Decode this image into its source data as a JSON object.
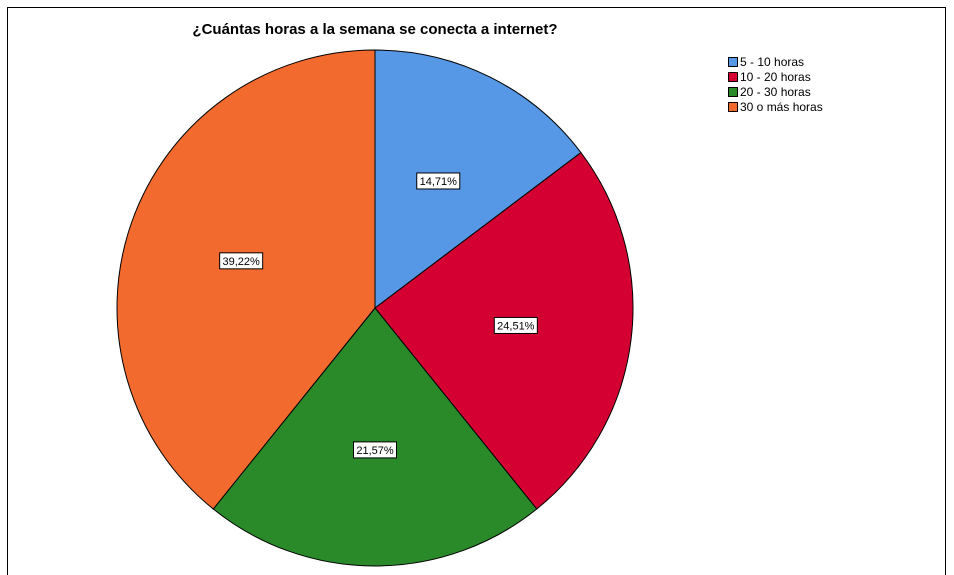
{
  "chart_data": {
    "type": "pie",
    "title": "¿Cuántas horas a la semana se conecta a internet?",
    "categories": [
      "5 - 10 horas",
      "10 - 20 horas",
      "20 - 30 horas",
      "30 o más horas"
    ],
    "values": [
      14.71,
      24.51,
      21.57,
      39.22
    ],
    "labels": [
      "14,71%",
      "24,51%",
      "21,57%",
      "39,22%"
    ],
    "colors": [
      "#5698e6",
      "#d40031",
      "#2a8a2a",
      "#f26a2e"
    ],
    "start_angle": "12 o'clock",
    "direction": "clockwise",
    "legend_position": "top-right"
  }
}
